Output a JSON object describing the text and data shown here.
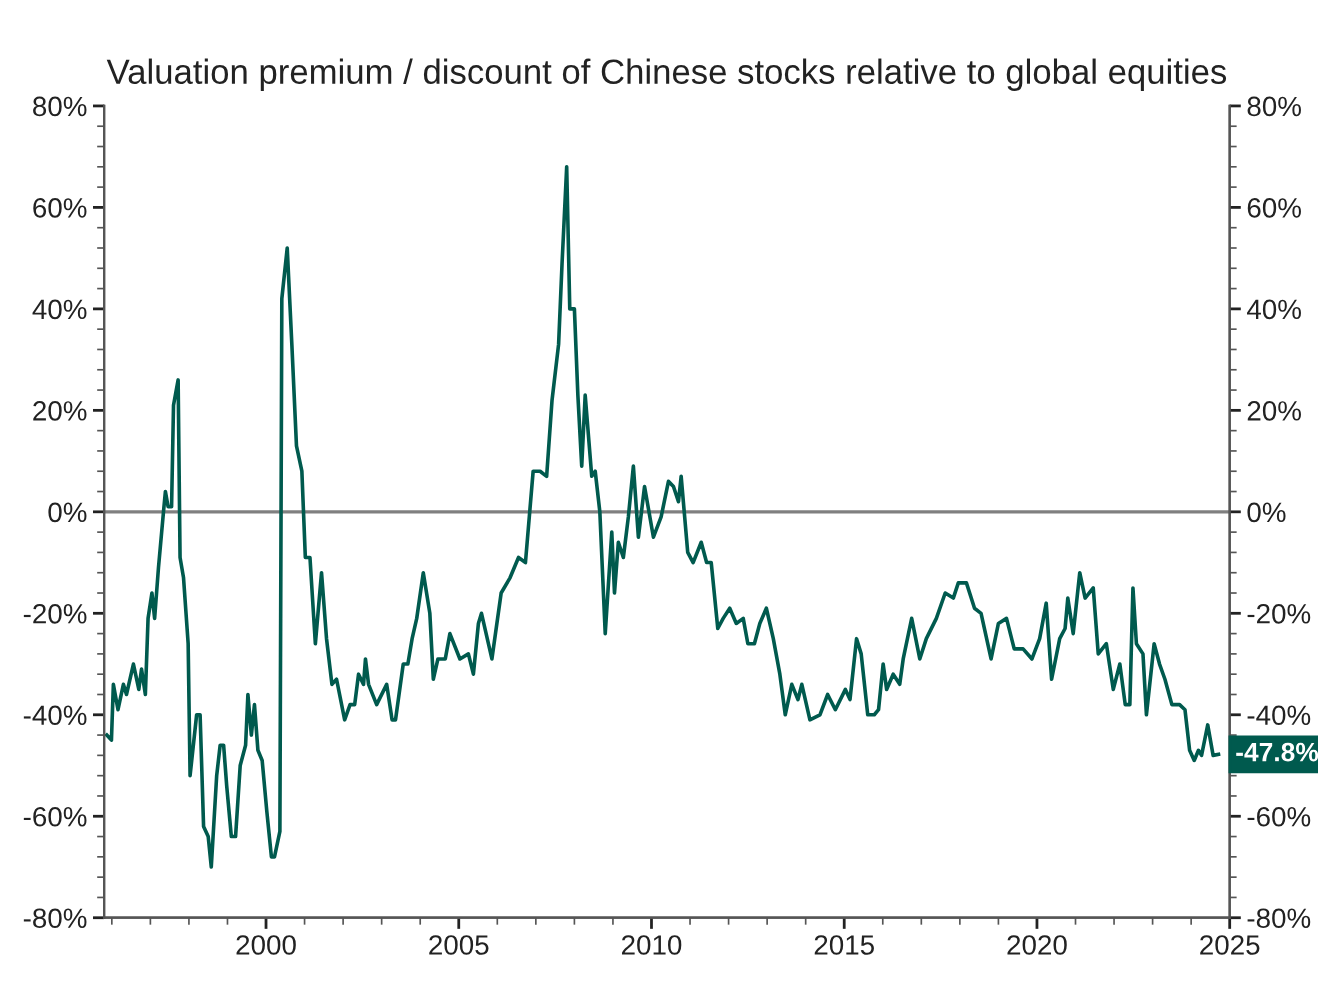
{
  "chart_data": {
    "type": "line",
    "title": "Valuation premium / discount of Chinese stocks relative to global equities",
    "x": [
      1995.87,
      1995.99,
      1996.04,
      1996.16,
      1996.3,
      1996.38,
      1996.56,
      1996.7,
      1996.77,
      1996.87,
      1996.94,
      1997.04,
      1997.11,
      1997.21,
      1997.34,
      1997.39,
      1997.46,
      1997.55,
      1997.6,
      1997.72,
      1997.77,
      1997.86,
      1997.98,
      1998.03,
      1998.2,
      1998.29,
      1998.38,
      1998.5,
      1998.58,
      1998.72,
      1998.81,
      1998.9,
      1998.98,
      1999.1,
      1999.21,
      1999.33,
      1999.47,
      1999.53,
      1999.62,
      1999.7,
      1999.79,
      1999.9,
      2000.02,
      2000.14,
      2000.22,
      2000.36,
      2000.41,
      2000.55,
      2000.67,
      2000.79,
      2000.93,
      2001.02,
      2001.14,
      2001.28,
      2001.44,
      2001.57,
      2001.71,
      2001.83,
      2002.04,
      2002.18,
      2002.3,
      2002.4,
      2002.53,
      2002.58,
      2002.66,
      2002.87,
      2003.13,
      2003.27,
      2003.36,
      2003.56,
      2003.68,
      2003.79,
      2003.91,
      2004.08,
      2004.25,
      2004.34,
      2004.46,
      2004.65,
      2004.77,
      2005.03,
      2005.25,
      2005.38,
      2005.51,
      2005.59,
      2005.86,
      2006.1,
      2006.33,
      2006.55,
      2006.73,
      2006.93,
      2007.11,
      2007.28,
      2007.42,
      2007.59,
      2007.68,
      2007.8,
      2007.88,
      2008.0,
      2008.09,
      2008.19,
      2008.28,
      2008.45,
      2008.54,
      2008.66,
      2008.8,
      2008.97,
      2009.04,
      2009.14,
      2009.27,
      2009.4,
      2009.53,
      2009.66,
      2009.82,
      2010.05,
      2010.25,
      2010.44,
      2010.57,
      2010.7,
      2010.77,
      2010.94,
      2011.08,
      2011.29,
      2011.43,
      2011.55,
      2011.72,
      2011.86,
      2012.03,
      2012.2,
      2012.38,
      2012.5,
      2012.67,
      2012.81,
      2012.98,
      2013.16,
      2013.33,
      2013.47,
      2013.64,
      2013.8,
      2013.9,
      2014.11,
      2014.37,
      2014.57,
      2014.77,
      2015.03,
      2015.15,
      2015.32,
      2015.44,
      2015.61,
      2015.78,
      2015.89,
      2016.01,
      2016.1,
      2016.27,
      2016.44,
      2016.53,
      2016.75,
      2016.96,
      2017.13,
      2017.39,
      2017.62,
      2017.83,
      2017.96,
      2018.17,
      2018.38,
      2018.55,
      2018.81,
      2019.0,
      2019.21,
      2019.41,
      2019.64,
      2019.87,
      2020.07,
      2020.24,
      2020.38,
      2020.59,
      2020.73,
      2020.8,
      2020.94,
      2021.11,
      2021.25,
      2021.46,
      2021.59,
      2021.8,
      2021.98,
      2022.15,
      2022.29,
      2022.41,
      2022.49,
      2022.58,
      2022.75,
      2022.84,
      2023.04,
      2023.18,
      2023.32,
      2023.5,
      2023.7,
      2023.84,
      2023.96,
      2024.08,
      2024.19,
      2024.27,
      2024.43,
      2024.57,
      2024.71
    ],
    "series": [
      {
        "color": "#005a4e",
        "values": [
          -44,
          -45,
          -34,
          -39,
          -34,
          -36,
          -30,
          -35,
          -31,
          -36,
          -21,
          -16,
          -21,
          -11,
          0,
          4,
          1,
          1,
          21,
          26,
          -9,
          -13,
          -26,
          -52,
          -40,
          -40,
          -62,
          -64,
          -70,
          -52,
          -46,
          -46,
          -54,
          -64,
          -64,
          -50,
          -46,
          -36,
          -44,
          -38,
          -47,
          -49,
          -59,
          -68,
          -68,
          -63,
          42,
          52,
          33,
          13,
          8,
          -9,
          -9,
          -26,
          -12,
          -25,
          -34,
          -33,
          -41,
          -38,
          -38,
          -32,
          -34,
          -29,
          -34,
          -38,
          -34,
          -41,
          -41,
          -30,
          -30,
          -25,
          -21,
          -12,
          -20,
          -33,
          -29,
          -29,
          -24,
          -29,
          -28,
          -32,
          -22,
          -20,
          -29,
          -16,
          -13,
          -9,
          -10,
          8,
          8,
          7,
          22,
          33,
          49,
          68,
          40,
          40,
          23,
          9,
          23,
          7,
          8,
          0,
          -24,
          -4,
          -16,
          -6,
          -9,
          -1,
          9,
          -5,
          5,
          -5,
          -1,
          6,
          5,
          2,
          7,
          -8,
          -10,
          -6,
          -10,
          -10,
          -23,
          -21,
          -19,
          -22,
          -21,
          -26,
          -26,
          -22,
          -19,
          -25,
          -32,
          -40,
          -34,
          -37,
          -34,
          -41,
          -40,
          -36,
          -39,
          -35,
          -37,
          -25,
          -28,
          -40,
          -40,
          -39,
          -30,
          -35,
          -32,
          -34,
          -29,
          -21,
          -29,
          -25,
          -21,
          -16,
          -17,
          -14,
          -14,
          -19,
          -20,
          -29,
          -22,
          -21,
          -27,
          -27,
          -29,
          -25,
          -18,
          -33,
          -25,
          -23,
          -17,
          -24,
          -12,
          -17,
          -15,
          -28,
          -26,
          -35,
          -30,
          -38,
          -38,
          -15,
          -26,
          -28,
          -40,
          -26,
          -30,
          -33,
          -38,
          -38,
          -39,
          -47,
          -49,
          -47,
          -48,
          -42,
          -48,
          -47.8
        ]
      }
    ],
    "xlim": [
      1995.8,
      2025
    ],
    "xticks": [
      2000,
      2005,
      2010,
      2015,
      2020,
      2025
    ],
    "ylim": [
      -80,
      80
    ],
    "yticks": [
      {
        "value": -80,
        "label": "-80%"
      },
      {
        "value": -60,
        "label": "-60%"
      },
      {
        "value": -40,
        "label": "-40%"
      },
      {
        "value": -20,
        "label": "-20%"
      },
      {
        "value": 0,
        "label": "0%"
      },
      {
        "value": 20,
        "label": "20%"
      },
      {
        "value": 40,
        "label": "40%"
      },
      {
        "value": 60,
        "label": "60%"
      },
      {
        "value": 80,
        "label": "80%"
      }
    ],
    "y2lim": [
      -80,
      80
    ],
    "y2ticks": [
      {
        "value": -80,
        "label": "-80%"
      },
      {
        "value": -60,
        "label": "-60%"
      },
      {
        "value": -40,
        "label": "-40%"
      },
      {
        "value": -20,
        "label": "-20%"
      },
      {
        "value": 0,
        "label": "0%"
      },
      {
        "value": 20,
        "label": "20%"
      },
      {
        "value": 40,
        "label": "40%"
      },
      {
        "value": 60,
        "label": "60%"
      },
      {
        "value": 80,
        "label": "80%"
      }
    ],
    "ref_lines": [
      {
        "axis": "y",
        "value": 0,
        "color": "#808080"
      }
    ],
    "annotations": [
      {
        "text": "-47.8%",
        "x": 2024.71,
        "y": -47.8
      }
    ],
    "grid": false,
    "legend": false
  }
}
